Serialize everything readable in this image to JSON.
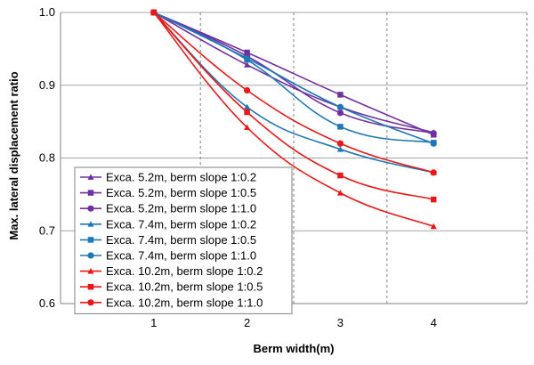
{
  "chart_data": {
    "type": "line",
    "title": "",
    "xlabel": "Berm width(m)",
    "ylabel": "Max. lateral displacement ratio",
    "x": [
      1,
      2,
      3,
      4
    ],
    "x_tick_labels": [
      "1",
      "2",
      "3",
      "4"
    ],
    "y_tick_labels": [
      "0.6",
      "0.7",
      "0.8",
      "0.9",
      "1.0"
    ],
    "xlim": [
      0,
      5
    ],
    "ylim": [
      0.6,
      1.0
    ],
    "y_ticks": [
      0.6,
      0.7,
      0.8,
      0.9,
      1.0
    ],
    "grid": "vertical dashed at x=1.5, 2.5, 3.5; horizontal gray",
    "legend_position": "bottom-left",
    "series": [
      {
        "name": "Exca. 5.2m, berm slope 1:0.2",
        "color": "#7030A0",
        "marker": "triangle",
        "values": [
          1.0,
          0.928,
          0.87,
          0.835
        ]
      },
      {
        "name": "Exca. 5.2m, berm slope 1:0.5",
        "color": "#7030A0",
        "marker": "square",
        "values": [
          1.0,
          0.945,
          0.887,
          0.832
        ]
      },
      {
        "name": "Exca. 5.2m, berm slope 1:1.0",
        "color": "#7030A0",
        "marker": "circle",
        "values": [
          1.0,
          0.94,
          0.862,
          0.834
        ]
      },
      {
        "name": "Exca. 7.4m, berm slope 1:0.2",
        "color": "#1F77B4",
        "marker": "triangle",
        "values": [
          1.0,
          0.87,
          0.812,
          0.78
        ]
      },
      {
        "name": "Exca. 7.4m, berm slope 1:0.5",
        "color": "#1F77B4",
        "marker": "square",
        "values": [
          1.0,
          0.935,
          0.843,
          0.821
        ]
      },
      {
        "name": "Exca. 7.4m, berm slope 1:1.0",
        "color": "#1F77B4",
        "marker": "circle",
        "values": [
          1.0,
          0.937,
          0.87,
          0.82
        ]
      },
      {
        "name": "Exca. 10.2m, berm slope 1:0.2",
        "color": "#E81818",
        "marker": "triangle",
        "values": [
          1.0,
          0.842,
          0.752,
          0.706
        ]
      },
      {
        "name": "Exca. 10.2m, berm slope 1:0.5",
        "color": "#E81818",
        "marker": "square",
        "values": [
          1.0,
          0.863,
          0.776,
          0.743
        ]
      },
      {
        "name": "Exca. 10.2m, berm slope 1:1.0",
        "color": "#E81818",
        "marker": "circle",
        "values": [
          1.0,
          0.893,
          0.82,
          0.78
        ]
      }
    ]
  }
}
